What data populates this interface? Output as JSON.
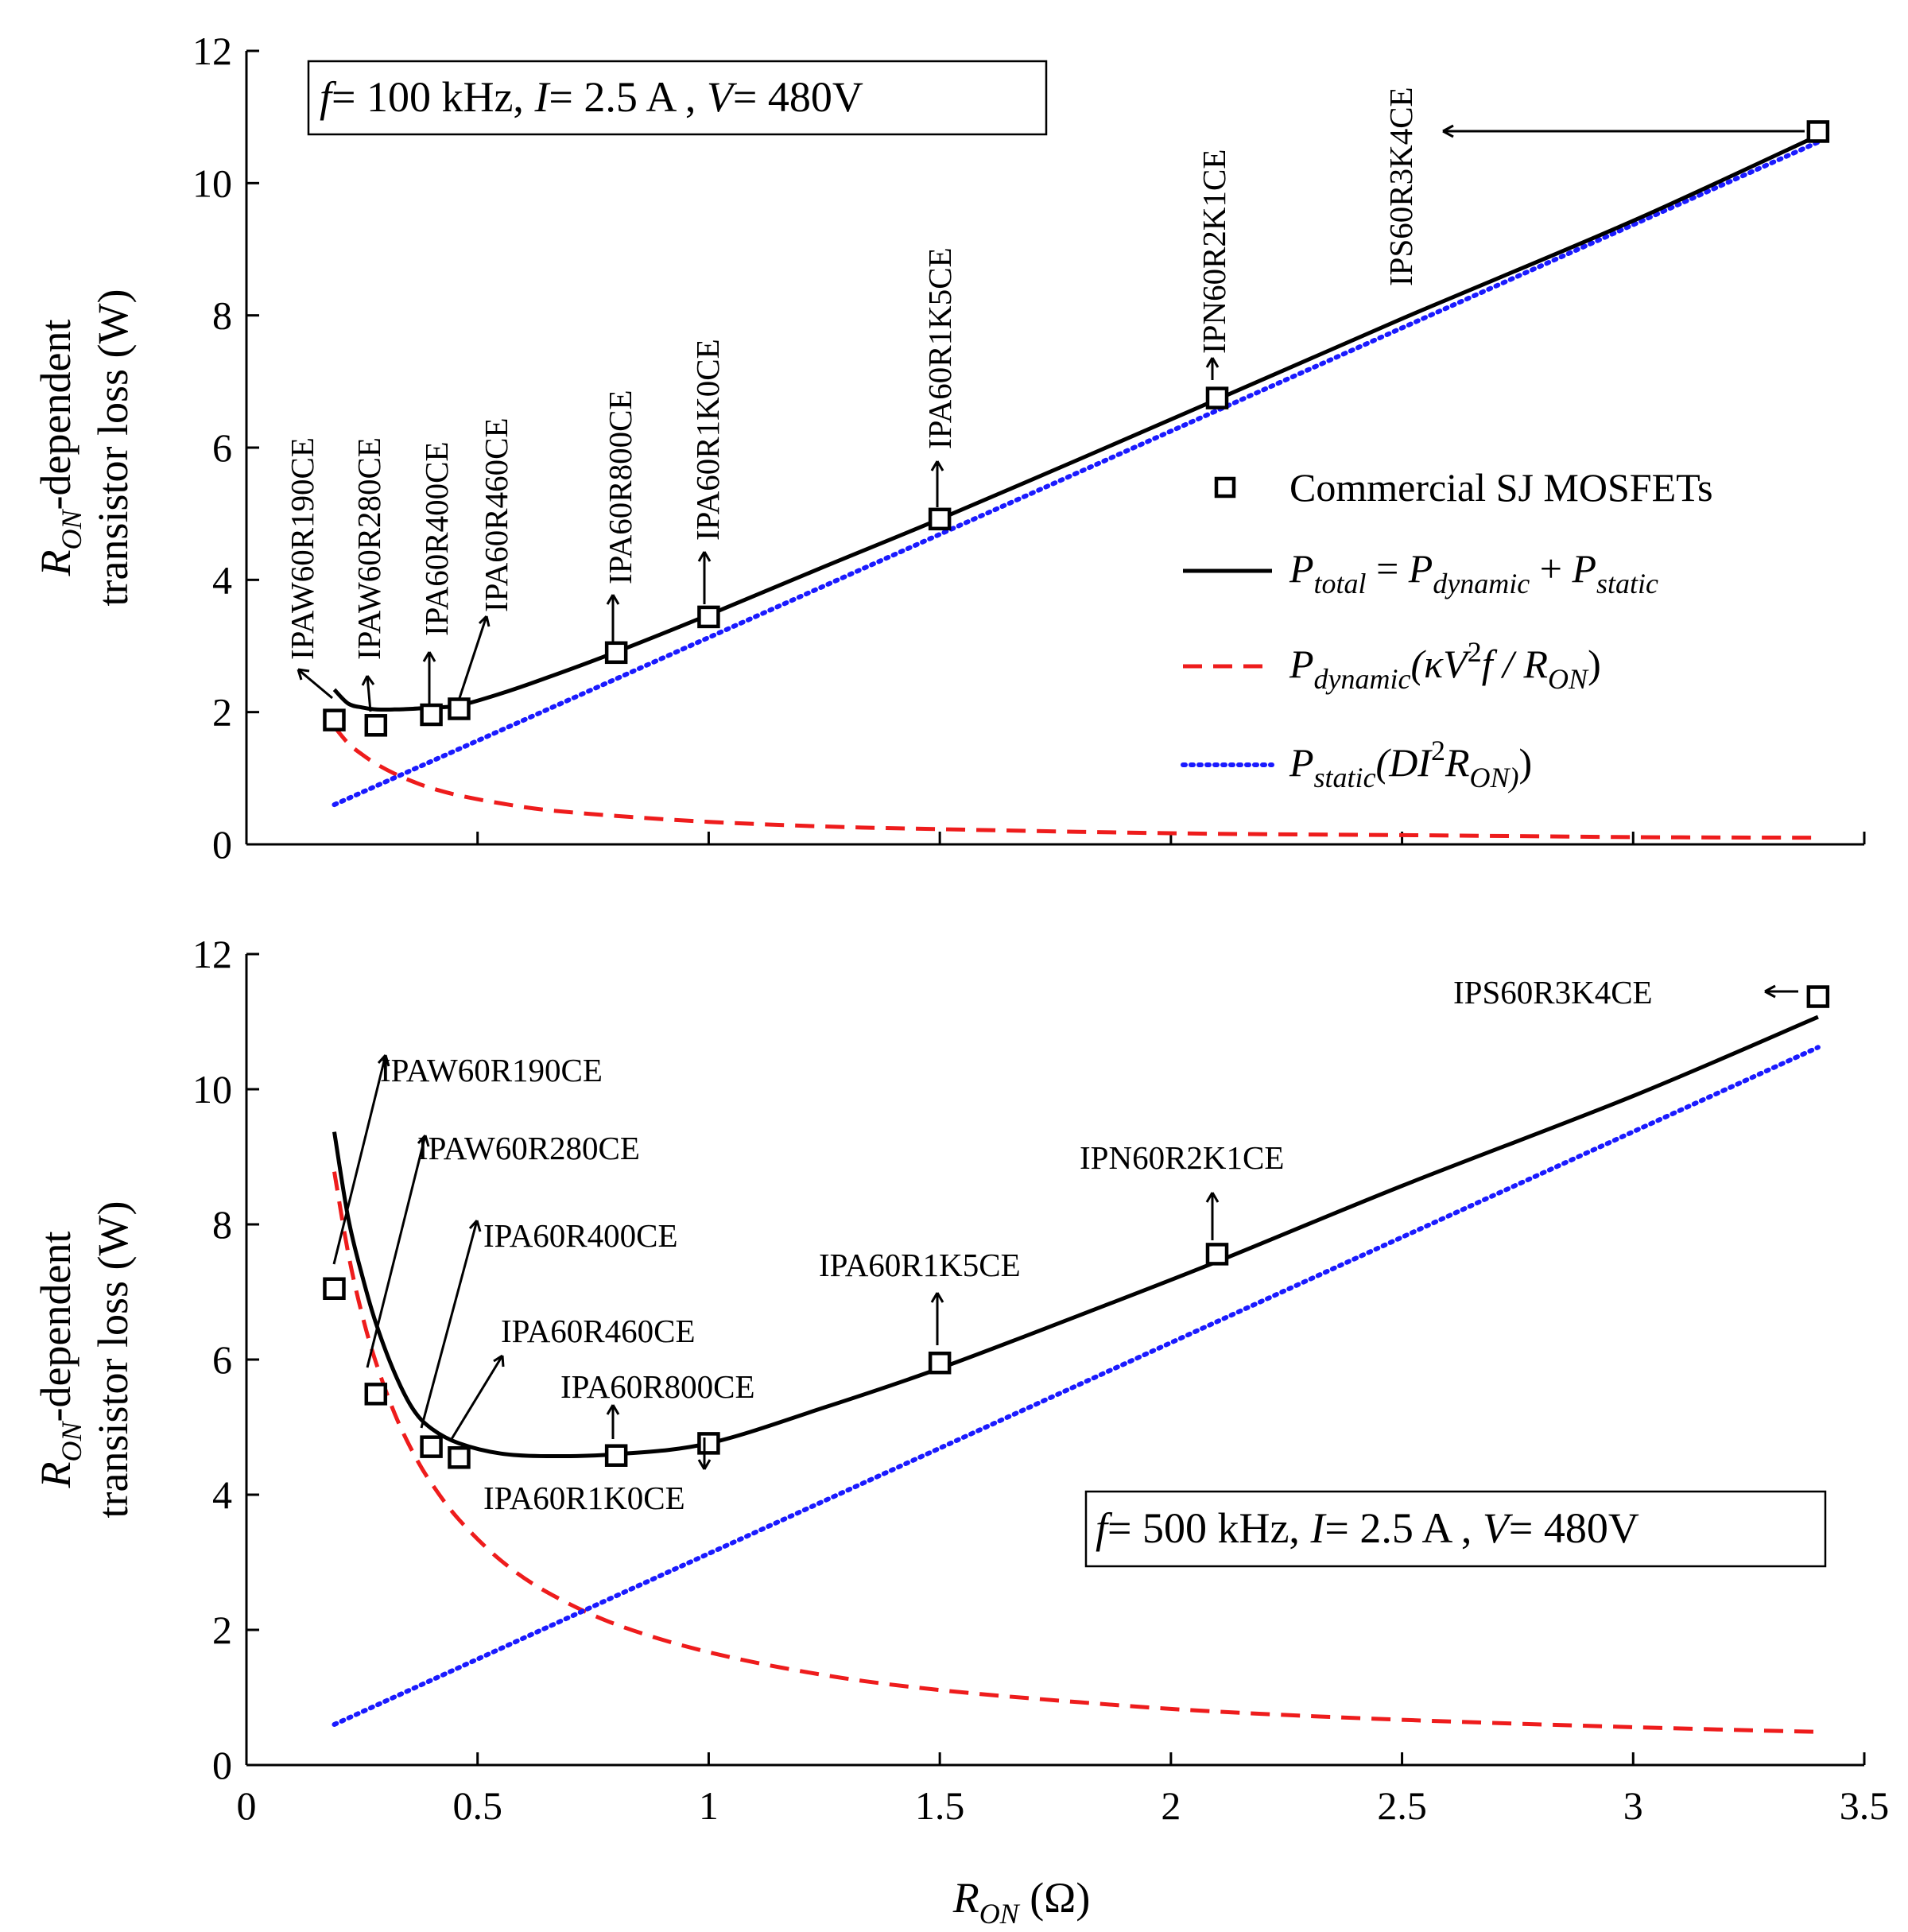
{
  "chart_data": [
    {
      "type": "line",
      "panel": "top",
      "annotation": {
        "f_label": "f",
        "f_value": "= 100 kHz,",
        "i_label": "I",
        "i_value": "= 2.5 A ,",
        "v_label": "V",
        "v_value": "= 480V"
      },
      "xlim": [
        0,
        3.5
      ],
      "ylim": [
        0,
        12
      ],
      "xticks": [
        "0",
        "0.5",
        "1",
        "1.5",
        "2",
        "2.5",
        "3",
        "3.5"
      ],
      "yticks": [
        "0",
        "2",
        "4",
        "6",
        "8",
        "10",
        "12"
      ],
      "ylabel_line1_var": "R",
      "ylabel_line1_sub": "ON",
      "ylabel_line1_rest": "-dependent",
      "ylabel_line2": "transistor loss (W)",
      "legend": {
        "marker_label": "Commercial SJ MOSFETs",
        "total": {
          "P": "P",
          "sub": "total",
          "eq": " = ",
          "P2": "P",
          "sub2": "dynamic",
          "plus": " + ",
          "P3": "P",
          "sub3": "static"
        },
        "dynamic": {
          "P": "P",
          "sub": "dynamic",
          "expr_open": "(κV",
          "sup": "2",
          "expr_mid": "f / R",
          "sub2": "ON",
          "expr_close": ")"
        },
        "static": {
          "P": "P",
          "sub": "static",
          "expr_open": "(DI",
          "sup": "2",
          "expr_mid": "R",
          "sub2": "ON)",
          "expr_close": ")"
        }
      },
      "series": [
        {
          "name": "P_total",
          "x": [
            0.19,
            0.22,
            0.25,
            0.28,
            0.32,
            0.36,
            0.4,
            0.46,
            0.55,
            0.65,
            0.8,
            1.0,
            1.25,
            1.5,
            1.8,
            2.1,
            2.5,
            3.0,
            3.4
          ],
          "y": [
            2.34,
            2.13,
            2.07,
            2.04,
            2.04,
            2.05,
            2.07,
            2.1,
            2.28,
            2.52,
            2.91,
            3.47,
            4.2,
            4.92,
            5.82,
            6.73,
            7.95,
            9.43,
            10.72
          ]
        },
        {
          "name": "P_dynamic",
          "x": [
            0.19,
            0.22,
            0.25,
            0.28,
            0.32,
            0.36,
            0.4,
            0.46,
            0.55,
            0.65,
            0.8,
            1.0,
            1.25,
            1.5,
            1.8,
            2.1,
            2.5,
            3.0,
            3.4
          ],
          "y": [
            1.78,
            1.53,
            1.36,
            1.22,
            1.07,
            0.95,
            0.85,
            0.74,
            0.62,
            0.52,
            0.43,
            0.34,
            0.27,
            0.23,
            0.19,
            0.16,
            0.14,
            0.11,
            0.1
          ]
        },
        {
          "name": "P_static",
          "x": [
            0.19,
            3.4
          ],
          "y": [
            0.6,
            10.62
          ]
        },
        {
          "name": "Commercial SJ MOSFETs",
          "x": [
            0.19,
            0.28,
            0.4,
            0.46,
            0.8,
            1.0,
            1.5,
            2.1,
            3.4
          ],
          "y": [
            1.88,
            1.8,
            1.96,
            2.05,
            2.9,
            3.44,
            4.92,
            6.75,
            10.78
          ]
        }
      ],
      "devices": [
        "IPAW60R190CE",
        "IPAW60R280CE",
        "IPA60R400CE",
        "IPA60R460CE",
        "IPA60R800CE",
        "IPA60R1K0CE",
        "IPA60R1K5CE",
        "IPN60R2K1CE",
        "IPS60R3K4CE"
      ]
    },
    {
      "type": "line",
      "panel": "bottom",
      "annotation": {
        "f_label": "f",
        "f_value": "= 500 kHz,",
        "i_label": "I",
        "i_value": "= 2.5 A ,",
        "v_label": "V",
        "v_value": "= 480V"
      },
      "xlim": [
        0,
        3.5
      ],
      "ylim": [
        0,
        12
      ],
      "xticks": [
        "0",
        "0.5",
        "1",
        "1.5",
        "2",
        "2.5",
        "3",
        "3.5"
      ],
      "yticks": [
        "0",
        "2",
        "4",
        "6",
        "8",
        "10",
        "12"
      ],
      "ylabel_line1_var": "R",
      "ylabel_line1_sub": "ON",
      "ylabel_line1_rest": "-dependent",
      "ylabel_line2": "transistor loss (W)",
      "xlabel_var": "R",
      "xlabel_sub": "ON",
      "xlabel_unit": " (Ω)",
      "series": [
        {
          "name": "P_total",
          "x": [
            0.19,
            0.22,
            0.25,
            0.28,
            0.32,
            0.36,
            0.4,
            0.46,
            0.55,
            0.65,
            0.8,
            1.0,
            1.25,
            1.5,
            1.8,
            2.1,
            2.5,
            3.0,
            3.4
          ],
          "y": [
            9.37,
            8.1,
            7.25,
            6.54,
            5.81,
            5.27,
            4.98,
            4.76,
            4.61,
            4.57,
            4.6,
            4.76,
            5.29,
            5.87,
            6.65,
            7.45,
            8.57,
            9.9,
            11.07
          ]
        },
        {
          "name": "P_dynamic",
          "x": [
            0.19,
            0.22,
            0.25,
            0.28,
            0.32,
            0.36,
            0.4,
            0.46,
            0.55,
            0.65,
            0.8,
            1.0,
            1.25,
            1.5,
            1.8,
            2.1,
            2.5,
            3.0,
            3.4
          ],
          "y": [
            8.78,
            7.58,
            6.67,
            5.96,
            5.21,
            4.63,
            4.17,
            3.63,
            3.03,
            2.56,
            2.08,
            1.67,
            1.33,
            1.11,
            0.93,
            0.79,
            0.67,
            0.56,
            0.49
          ]
        },
        {
          "name": "P_static",
          "x": [
            0.19,
            3.4
          ],
          "y": [
            0.6,
            10.62
          ]
        },
        {
          "name": "Commercial SJ MOSFETs",
          "x": [
            0.19,
            0.28,
            0.4,
            0.46,
            0.8,
            1.0,
            1.5,
            2.1,
            3.4
          ],
          "y": [
            7.05,
            5.49,
            4.71,
            4.55,
            4.58,
            4.76,
            5.95,
            7.56,
            11.37
          ]
        }
      ],
      "devices": [
        "IPAW60R190CE",
        "IPAW60R280CE",
        "IPA60R400CE",
        "IPA60R460CE",
        "IPA60R800CE",
        "IPA60R1K0CE",
        "IPA60R1K5CE",
        "IPN60R2K1CE",
        "IPS60R3K4CE"
      ]
    }
  ]
}
